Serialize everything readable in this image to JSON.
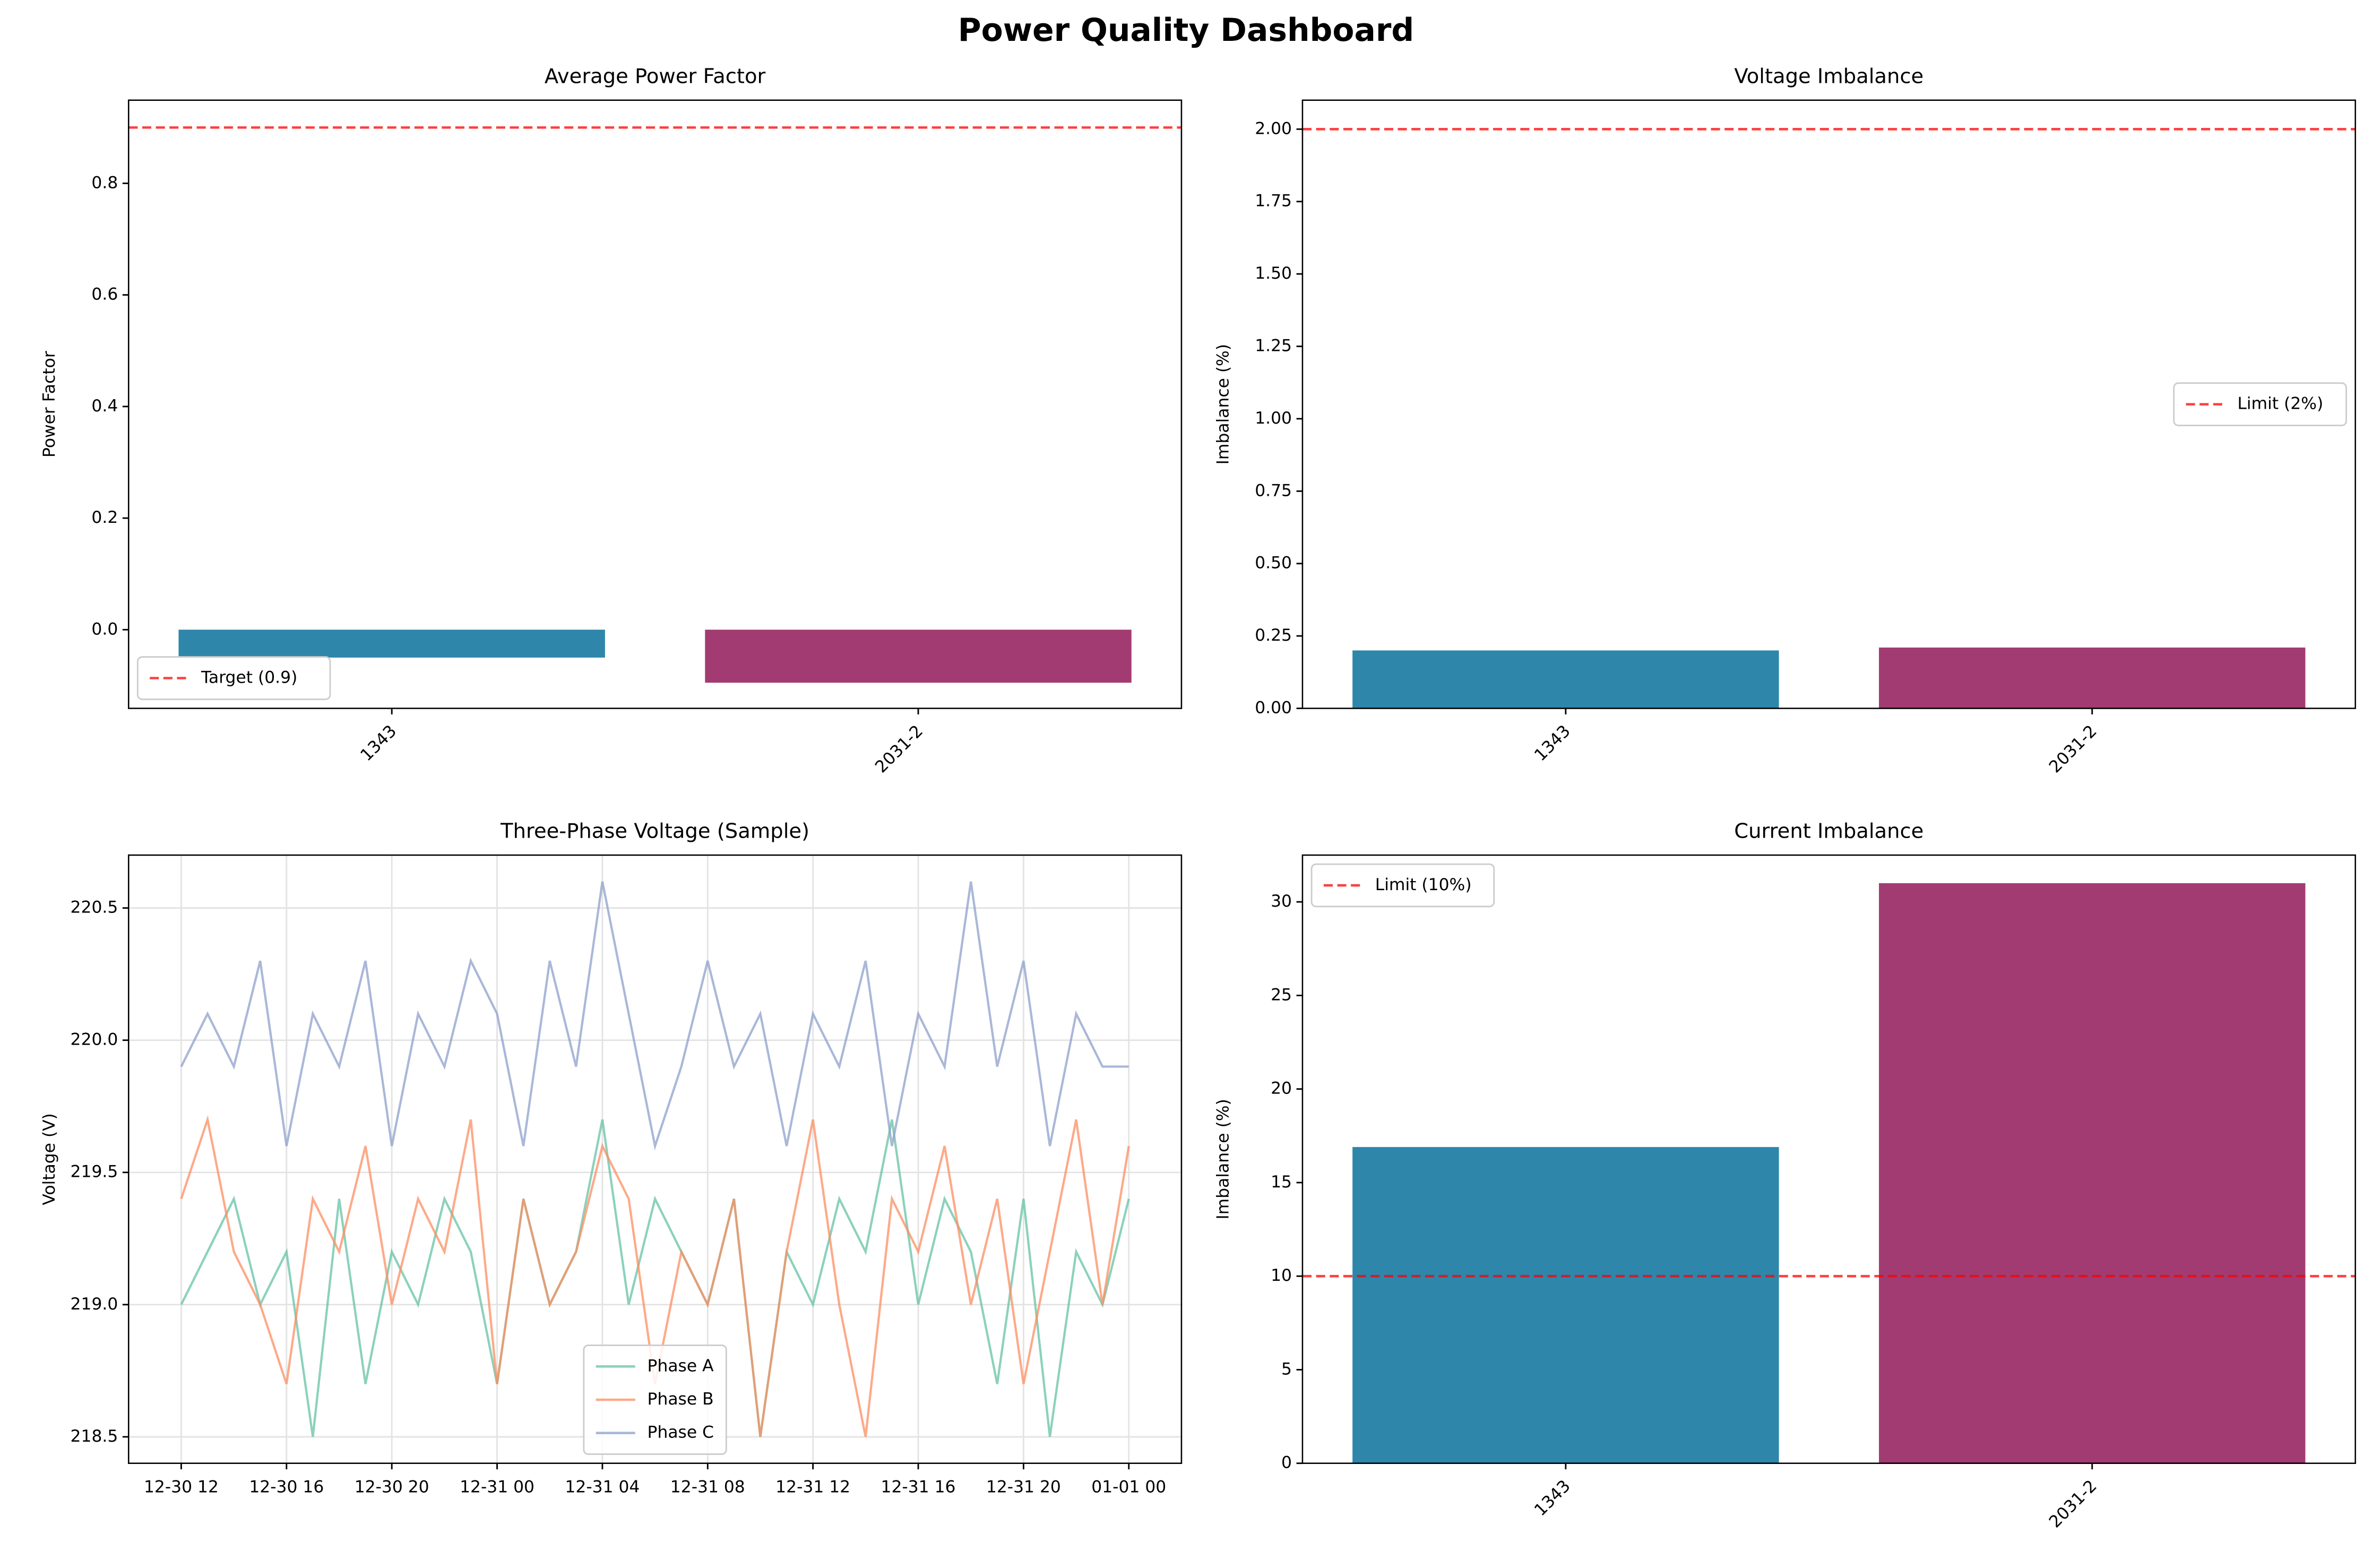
{
  "title": "Power Quality Dashboard",
  "chart_data": [
    {
      "type": "bar",
      "title": "Average Power Factor",
      "ylabel": "Power Factor",
      "categories": [
        "1343",
        "2031-2"
      ],
      "values": [
        -0.05,
        -0.095
      ],
      "colors": [
        "#2e86ab",
        "#a23b72"
      ],
      "ylim": [
        -0.141,
        0.949
      ],
      "yticks": [
        {
          "value": 0,
          "label": "0.0"
        },
        0.2,
        0.4,
        0.6,
        0.8
      ],
      "ref_line": {
        "value": 0.9,
        "label": "Target (0.9)",
        "color": "#ff0000"
      },
      "legend": "lower left",
      "grid": false
    },
    {
      "type": "bar",
      "title": "Voltage Imbalance",
      "ylabel": "Imbalance (%)",
      "categories": [
        "1343",
        "2031-2"
      ],
      "values": [
        0.2,
        0.21
      ],
      "colors": [
        "#2e86ab",
        "#a23b72"
      ],
      "ylim": [
        0,
        2.1
      ],
      "yticks": [
        {
          "value": 0,
          "label": "0.00"
        },
        0.25,
        {
          "value": 0.5,
          "label": "0.50"
        },
        0.75,
        {
          "value": 1,
          "label": "1.00"
        },
        1.25,
        {
          "value": 1.5,
          "label": "1.50"
        },
        1.75,
        {
          "value": 2,
          "label": "2.00"
        }
      ],
      "ref_line": {
        "value": 2,
        "label": "Limit (2%)",
        "color": "#ff0000"
      },
      "legend": "center right",
      "grid": false
    },
    {
      "type": "line",
      "title": "Three-Phase Voltage (Sample)",
      "ylabel": "Voltage (V)",
      "x": [
        "12-30 12",
        "12-30 13",
        "12-30 14",
        "12-30 15",
        "12-30 16",
        "12-30 17",
        "12-30 18",
        "12-30 19",
        "12-30 20",
        "12-30 21",
        "12-30 22",
        "12-30 23",
        "12-31 00",
        "12-31 01",
        "12-31 02",
        "12-31 03",
        "12-31 04",
        "12-31 05",
        "12-31 06",
        "12-31 07",
        "12-31 08",
        "12-31 09",
        "12-31 10",
        "12-31 11",
        "12-31 12",
        "12-31 13",
        "12-31 14",
        "12-31 15",
        "12-31 16",
        "12-31 17",
        "12-31 18",
        "12-31 19",
        "12-31 20",
        "12-31 21",
        "12-31 22",
        "12-31 23",
        "01-01 00"
      ],
      "series": [
        {
          "name": "Phase A",
          "color": "#66c2a5",
          "values": [
            219.0,
            219.2,
            219.4,
            219.0,
            219.2,
            218.5,
            219.4,
            218.7,
            219.2,
            219.0,
            219.4,
            219.2,
            218.7,
            219.4,
            219.0,
            219.2,
            219.7,
            219.0,
            219.4,
            219.2,
            219.0,
            219.4,
            218.5,
            219.2,
            219.0,
            219.4,
            219.2,
            219.7,
            219.0,
            219.4,
            219.2,
            218.7,
            219.4,
            218.5,
            219.2,
            219.0,
            219.4
          ]
        },
        {
          "name": "Phase B",
          "color": "#fc8d62",
          "values": [
            219.4,
            219.7,
            219.2,
            219.0,
            218.7,
            219.4,
            219.2,
            219.6,
            219.0,
            219.4,
            219.2,
            219.7,
            218.7,
            219.4,
            219.0,
            219.2,
            219.6,
            219.4,
            218.7,
            219.2,
            219.0,
            219.4,
            218.5,
            219.2,
            219.7,
            219.0,
            218.5,
            219.4,
            219.2,
            219.6,
            219.0,
            219.4,
            218.7,
            219.2,
            219.7,
            219.0,
            219.6
          ]
        },
        {
          "name": "Phase C",
          "color": "#8da0cb",
          "values": [
            219.9,
            220.1,
            219.9,
            220.3,
            219.6,
            220.1,
            219.9,
            220.3,
            219.6,
            220.1,
            219.9,
            220.3,
            220.1,
            219.6,
            220.3,
            219.9,
            220.6,
            220.1,
            219.6,
            219.9,
            220.3,
            219.9,
            220.1,
            219.6,
            220.1,
            219.9,
            220.3,
            219.6,
            220.1,
            219.9,
            220.6,
            219.9,
            220.3,
            219.6,
            220.1,
            219.9,
            219.9
          ]
        }
      ],
      "xlim": [
        "12-30 10",
        "01-01 02"
      ],
      "xticks": [
        "12-30 12",
        "12-30 16",
        "12-30 20",
        "12-31 00",
        "12-31 04",
        "12-31 08",
        "12-31 12",
        "12-31 16",
        "12-31 20",
        "01-01 00"
      ],
      "ylim": [
        218.4,
        220.7
      ],
      "yticks": [
        218.5,
        {
          "value": 219,
          "label": "219.0"
        },
        219.5,
        {
          "value": 220,
          "label": "220.0"
        },
        220.5
      ],
      "legend": "lower center",
      "grid": true
    },
    {
      "type": "bar",
      "title": "Current Imbalance",
      "ylabel": "Imbalance (%)",
      "categories": [
        "1343",
        "2031-2"
      ],
      "values": [
        16.9,
        31.0
      ],
      "colors": [
        "#2e86ab",
        "#a23b72"
      ],
      "ylim": [
        0,
        32.5
      ],
      "yticks": [
        0,
        5,
        10,
        15,
        20,
        25,
        30
      ],
      "ref_line": {
        "value": 10,
        "label": "Limit (10%)",
        "color": "#ff0000"
      },
      "legend": "upper left",
      "grid": false
    }
  ]
}
